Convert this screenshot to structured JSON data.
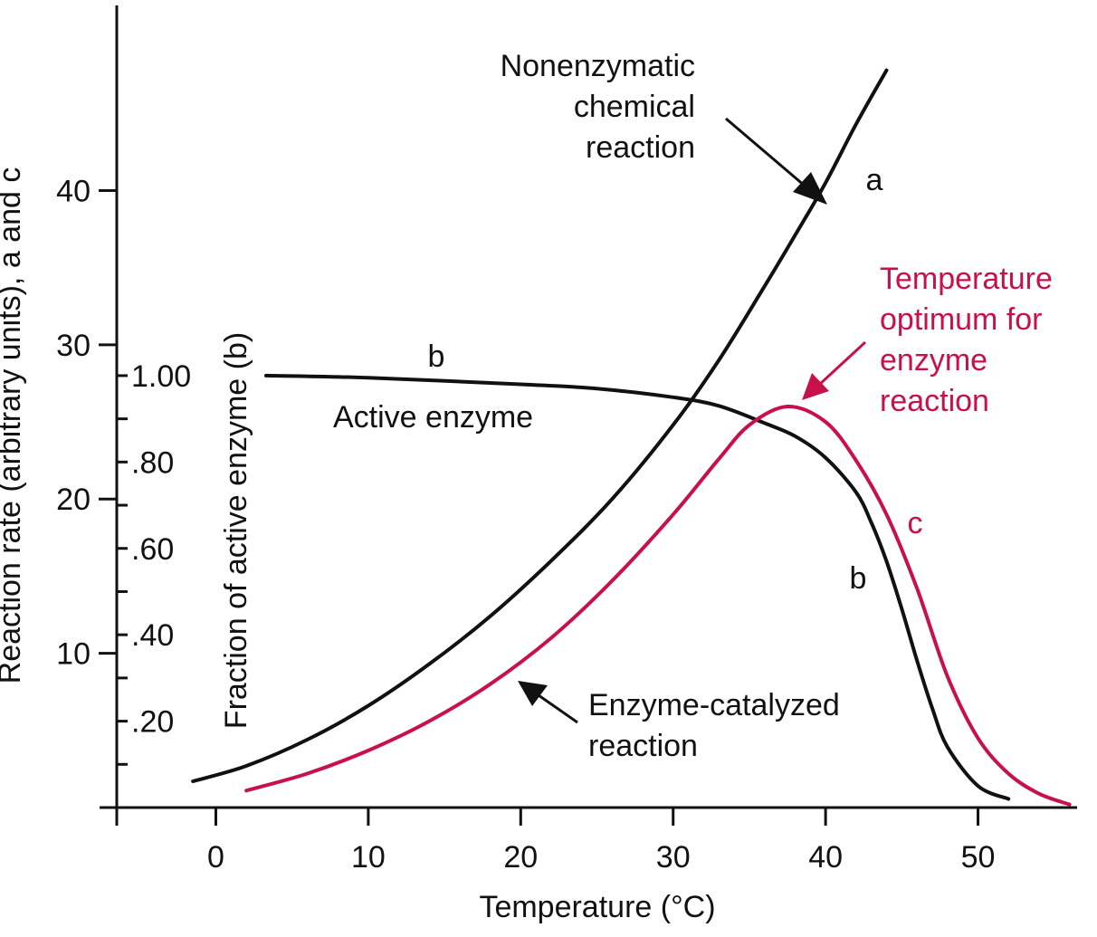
{
  "chart_data": {
    "type": "line",
    "xlabel": "Temperature (°C)",
    "ylabel_left": "Reaction rate (arbitrary units), a and c",
    "ylabel_inner": "Fraction of active enzyme (b)",
    "xlim": [
      -6.5,
      56.5
    ],
    "ylim": [
      0,
      52
    ],
    "fraction_lim": [
      0,
      1.0
    ],
    "x_ticks": [
      0,
      10,
      20,
      30,
      40,
      50
    ],
    "y_ticks": [
      10,
      20,
      30,
      40
    ],
    "fraction_ticks": [
      {
        "value": 0.2,
        "label": ".20"
      },
      {
        "value": 0.4,
        "label": ".40"
      },
      {
        "value": 0.6,
        "label": ".60"
      },
      {
        "value": 0.8,
        "label": ".80"
      },
      {
        "value": 1.0,
        "label": "1.00"
      }
    ],
    "series": [
      {
        "name": "a",
        "color": "#111111",
        "axis": "rate",
        "x": [
          -1.5,
          2,
          6,
          10,
          14,
          18,
          22,
          26,
          30,
          33,
          36,
          38,
          40,
          42,
          44
        ],
        "y": [
          1.7,
          2.7,
          4.4,
          6.6,
          9.3,
          12.4,
          16.0,
          20.0,
          24.8,
          29.0,
          33.8,
          37.1,
          40.5,
          44.3,
          47.8
        ]
      },
      {
        "name": "b",
        "color": "#111111",
        "axis": "fraction",
        "x": [
          3.3,
          10,
          20,
          25,
          30,
          33,
          36,
          38,
          40,
          42,
          43,
          44,
          45,
          46,
          47,
          48,
          50,
          52
        ],
        "y": [
          1.0,
          0.995,
          0.98,
          0.97,
          0.95,
          0.93,
          0.89,
          0.86,
          0.81,
          0.73,
          0.66,
          0.57,
          0.46,
          0.34,
          0.23,
          0.14,
          0.05,
          0.02
        ]
      },
      {
        "name": "c",
        "color": "#c8104a",
        "axis": "rate",
        "x": [
          2,
          6,
          10,
          14,
          18,
          22,
          26,
          30,
          33,
          35,
          37.5,
          40,
          42,
          44,
          46,
          48,
          50,
          52,
          54,
          56
        ],
        "y": [
          1.1,
          2.2,
          3.7,
          5.6,
          8.0,
          11.0,
          14.7,
          19.0,
          22.6,
          24.8,
          26.0,
          25.0,
          22.5,
          19.0,
          14.2,
          8.5,
          4.5,
          2.2,
          0.9,
          0.2
        ]
      }
    ],
    "annotations": {
      "nonenzymatic": [
        "Nonenzymatic",
        "chemical",
        "reaction"
      ],
      "curve_a_label": "a",
      "curve_b_label_top": "b",
      "curve_b_label_right": "b",
      "curve_c_label": "c",
      "active_enzyme": "Active enzyme",
      "optimum": [
        "Temperature",
        "optimum for",
        "enzyme",
        "reaction"
      ],
      "enzyme_catalyzed": [
        "Enzyme-catalyzed",
        "reaction"
      ]
    }
  }
}
